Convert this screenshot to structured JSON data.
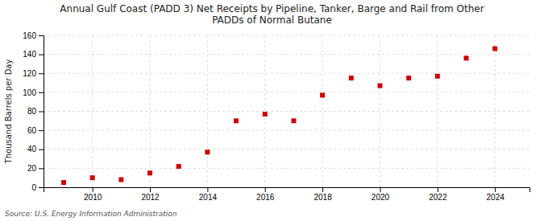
{
  "chart_data": {
    "type": "scatter",
    "title": "Annual Gulf Coast (PADD 3) Net Receipts by Pipeline, Tanker, Barge and Rail from Other\nPADDs of Normal Butane",
    "ylabel": "Thousand Barrels per Day",
    "source": "Source: U.S. Energy Information Administration",
    "x": [
      2009,
      2010,
      2011,
      2012,
      2013,
      2014,
      2015,
      2016,
      2017,
      2018,
      2019,
      2020,
      2021,
      2022,
      2023,
      2024
    ],
    "values": [
      5,
      10,
      8,
      15,
      22,
      37,
      70,
      77,
      70,
      97,
      115,
      107,
      115,
      117,
      136,
      146
    ],
    "color": "#cc0000",
    "marker": "square",
    "xlim": [
      2008.3,
      2025.2
    ],
    "ylim": [
      0,
      160
    ],
    "xticks": [
      2010,
      2012,
      2014,
      2016,
      2018,
      2020,
      2022,
      2024
    ],
    "yticks": [
      0,
      20,
      40,
      60,
      80,
      100,
      120,
      140,
      160
    ],
    "grid": true
  }
}
